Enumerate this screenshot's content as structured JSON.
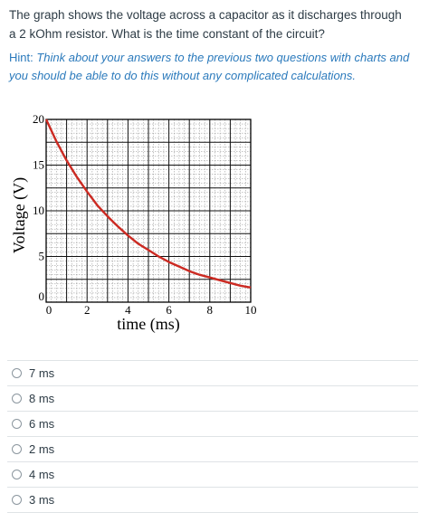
{
  "question": {
    "text": "The graph shows the voltage across a capacitor as it discharges through a  2 kOhm resistor.  What is the time constant of the circuit?"
  },
  "hint": {
    "label": "Hint: ",
    "text": "Think about your answers to the previous two questions with charts and you should be able to do this without any complicated calculations."
  },
  "chart_data": {
    "type": "line",
    "title": "",
    "xlabel": "time (ms)",
    "ylabel": "Voltage (V)",
    "xlim": [
      0,
      10
    ],
    "ylim": [
      0,
      20
    ],
    "x_ticks": [
      "0",
      "2",
      "4",
      "6",
      "8",
      "10"
    ],
    "y_ticks": [
      "0",
      "5",
      "10",
      "15",
      "20"
    ],
    "grid": true,
    "minor_grid": true,
    "line_color": "#cc2a22",
    "series": [
      {
        "x": [
          0,
          0.5,
          1,
          1.5,
          2,
          2.5,
          3,
          3.5,
          4,
          4.5,
          5,
          5.5,
          6,
          6.5,
          7,
          7.5,
          8,
          8.5,
          9,
          9.5,
          10
        ],
        "values": [
          20,
          17.6,
          15.5,
          13.7,
          12.1,
          10.6,
          9.4,
          8.3,
          7.3,
          6.4,
          5.7,
          5.0,
          4.4,
          3.9,
          3.4,
          3.0,
          2.7,
          2.4,
          2.1,
          1.8,
          1.6
        ]
      }
    ]
  },
  "answers": [
    {
      "label": "7 ms"
    },
    {
      "label": "8 ms"
    },
    {
      "label": "6 ms"
    },
    {
      "label": "2 ms"
    },
    {
      "label": "4 ms"
    },
    {
      "label": "3 ms"
    }
  ]
}
